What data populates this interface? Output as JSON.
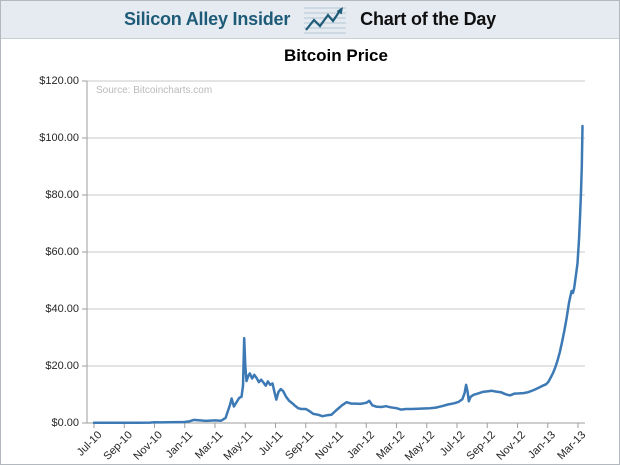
{
  "header": {
    "brand": "Silicon Alley Insider",
    "title": "Chart of the Day",
    "icon": "sparkline-arrow-icon"
  },
  "chart": {
    "title": "Bitcoin Price",
    "source": "Source: Bitcoincharts.com"
  },
  "chart_data": {
    "type": "line",
    "title": "Bitcoin Price",
    "source": "Source: Bitcoincharts.com",
    "legend": false,
    "grid": true,
    "x_axis": {
      "unit": "month index since Jul-2010",
      "tick_labels": [
        "Jul-10",
        "Sep-10",
        "Nov-10",
        "Jan-11",
        "Mar-11",
        "May-11",
        "Jul-11",
        "Sep-11",
        "Nov-11",
        "Jan-12",
        "Mar-12",
        "May-12",
        "Jul-12",
        "Sep-12",
        "Nov-12",
        "Jan-13",
        "Mar-13"
      ],
      "tick_month_index": [
        0,
        2,
        4,
        6,
        8,
        10,
        12,
        14,
        16,
        18,
        20,
        22,
        24,
        26,
        28,
        30,
        32
      ]
    },
    "y_axis": {
      "tick_labels": [
        "$0.00",
        "$20.00",
        "$40.00",
        "$60.00",
        "$80.00",
        "$100.00",
        "$120.00"
      ],
      "tick_values": [
        0,
        20,
        40,
        60,
        80,
        100,
        120
      ],
      "ylim": [
        0,
        120
      ]
    },
    "colors": {
      "line": "#3d7ab5",
      "gridline": "#c9c9c9",
      "axis": "#9e9e9e",
      "header_accent": "#1d5b78"
    },
    "series": [
      {
        "name": "Bitcoin price (USD)",
        "color": "#3d7ab5",
        "points": [
          [
            0,
            0.06
          ],
          [
            1,
            0.06
          ],
          [
            2,
            0.06
          ],
          [
            3,
            0.1
          ],
          [
            3.7,
            0.15
          ],
          [
            4,
            0.25
          ],
          [
            4.4,
            0.2
          ],
          [
            5,
            0.25
          ],
          [
            5.6,
            0.3
          ],
          [
            6,
            0.35
          ],
          [
            6.3,
            0.6
          ],
          [
            6.6,
            1.1
          ],
          [
            7,
            0.9
          ],
          [
            7.4,
            0.75
          ],
          [
            8,
            0.9
          ],
          [
            8.4,
            0.8
          ],
          [
            8.7,
            1.8
          ],
          [
            9.0,
            6.5
          ],
          [
            9.1,
            8.6
          ],
          [
            9.25,
            5.8
          ],
          [
            9.45,
            7.5
          ],
          [
            9.6,
            8.8
          ],
          [
            9.75,
            9.2
          ],
          [
            9.85,
            13
          ],
          [
            9.93,
            29.8
          ],
          [
            10.0,
            20
          ],
          [
            10.08,
            14.7
          ],
          [
            10.2,
            16.5
          ],
          [
            10.3,
            17.4
          ],
          [
            10.45,
            15.6
          ],
          [
            10.6,
            16.9
          ],
          [
            10.75,
            15.8
          ],
          [
            10.9,
            14.3
          ],
          [
            11.05,
            15.2
          ],
          [
            11.2,
            14.2
          ],
          [
            11.35,
            13.1
          ],
          [
            11.5,
            14.6
          ],
          [
            11.65,
            13.4
          ],
          [
            11.8,
            13.9
          ],
          [
            11.95,
            10.5
          ],
          [
            12.05,
            8.2
          ],
          [
            12.2,
            10.9
          ],
          [
            12.35,
            11.9
          ],
          [
            12.5,
            11.2
          ],
          [
            12.7,
            9.2
          ],
          [
            12.9,
            7.8
          ],
          [
            13.1,
            7.0
          ],
          [
            13.3,
            6.0
          ],
          [
            13.5,
            5.2
          ],
          [
            13.7,
            4.9
          ],
          [
            14.0,
            4.9
          ],
          [
            14.2,
            4.3
          ],
          [
            14.5,
            3.2
          ],
          [
            14.8,
            2.9
          ],
          [
            15.1,
            2.4
          ],
          [
            15.4,
            2.7
          ],
          [
            15.7,
            2.9
          ],
          [
            16.0,
            4.4
          ],
          [
            16.4,
            6.2
          ],
          [
            16.7,
            7.3
          ],
          [
            17.0,
            6.8
          ],
          [
            17.3,
            6.8
          ],
          [
            17.6,
            6.7
          ],
          [
            18.0,
            7.1
          ],
          [
            18.2,
            7.8
          ],
          [
            18.4,
            6.2
          ],
          [
            18.7,
            5.7
          ],
          [
            19.0,
            5.6
          ],
          [
            19.3,
            5.9
          ],
          [
            19.6,
            5.5
          ],
          [
            20.0,
            5.2
          ],
          [
            20.3,
            4.7
          ],
          [
            20.6,
            4.9
          ],
          [
            21.0,
            4.9
          ],
          [
            21.4,
            5.0
          ],
          [
            21.8,
            5.1
          ],
          [
            22.2,
            5.2
          ],
          [
            22.6,
            5.4
          ],
          [
            23.0,
            5.9
          ],
          [
            23.4,
            6.5
          ],
          [
            23.8,
            6.9
          ],
          [
            24.1,
            7.4
          ],
          [
            24.35,
            8.3
          ],
          [
            24.5,
            10.5
          ],
          [
            24.6,
            13.4
          ],
          [
            24.7,
            11.0
          ],
          [
            24.78,
            7.6
          ],
          [
            24.9,
            9.2
          ],
          [
            25.1,
            9.9
          ],
          [
            25.4,
            10.4
          ],
          [
            25.7,
            10.9
          ],
          [
            26.0,
            11.1
          ],
          [
            26.3,
            11.3
          ],
          [
            26.6,
            11.0
          ],
          [
            26.9,
            10.8
          ],
          [
            27.2,
            10.1
          ],
          [
            27.5,
            9.7
          ],
          [
            27.8,
            10.3
          ],
          [
            28.1,
            10.4
          ],
          [
            28.4,
            10.5
          ],
          [
            28.7,
            10.8
          ],
          [
            29.0,
            11.4
          ],
          [
            29.3,
            12.1
          ],
          [
            29.6,
            12.9
          ],
          [
            29.9,
            13.6
          ],
          [
            30.05,
            14.5
          ],
          [
            30.2,
            16.0
          ],
          [
            30.35,
            17.5
          ],
          [
            30.5,
            19.5
          ],
          [
            30.65,
            22
          ],
          [
            30.8,
            25
          ],
          [
            30.95,
            28.5
          ],
          [
            31.1,
            32.5
          ],
          [
            31.25,
            37
          ],
          [
            31.4,
            42
          ],
          [
            31.5,
            44.5
          ],
          [
            31.58,
            46.3
          ],
          [
            31.66,
            45.6
          ],
          [
            31.74,
            47.2
          ],
          [
            31.87,
            52
          ],
          [
            31.97,
            56
          ],
          [
            32.07,
            65
          ],
          [
            32.14,
            73
          ],
          [
            32.2,
            81
          ],
          [
            32.25,
            90
          ],
          [
            32.3,
            104.2
          ]
        ]
      }
    ]
  }
}
